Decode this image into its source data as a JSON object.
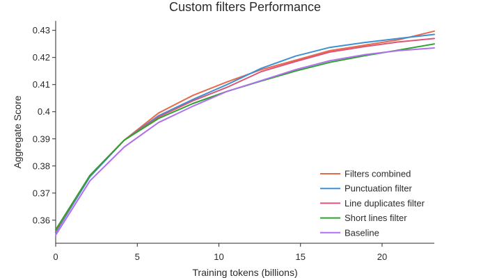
{
  "chart_data": {
    "type": "line",
    "title": "Custom filters Performance",
    "xlabel": "Training tokens (billions)",
    "ylabel": "Aggregate Score",
    "xlim": [
      0,
      23.2
    ],
    "ylim": [
      0.3515,
      0.4335
    ],
    "xticks": [
      0,
      5,
      10,
      15,
      20
    ],
    "xtick_labels": [
      "0",
      "5",
      "10",
      "15",
      "20"
    ],
    "yticks": [
      0.36,
      0.37,
      0.38,
      0.39,
      0.4,
      0.41,
      0.42,
      0.43
    ],
    "ytick_labels": [
      "0.36",
      "0.37",
      "0.38",
      "0.39",
      "0.4",
      "0.41",
      "0.42",
      "0.43"
    ],
    "grid": false,
    "legend_position": "bottom-right",
    "x": [
      0,
      2.1,
      4.2,
      6.3,
      8.4,
      10.5,
      12.6,
      14.7,
      16.8,
      18.9,
      21.0,
      23.2
    ],
    "series": [
      {
        "name": "Filters combined",
        "color": "#e8694a",
        "values": [
          0.3555,
          0.3765,
          0.3895,
          0.3995,
          0.406,
          0.411,
          0.4155,
          0.419,
          0.4225,
          0.4245,
          0.4265,
          0.4297
        ]
      },
      {
        "name": "Punctuation filter",
        "color": "#3d8fd6",
        "values": [
          0.3555,
          0.376,
          0.3895,
          0.3985,
          0.4045,
          0.41,
          0.416,
          0.4205,
          0.4237,
          0.4255,
          0.427,
          0.4285
        ]
      },
      {
        "name": "Line duplicates filter",
        "color": "#d9557a",
        "values": [
          0.356,
          0.3765,
          0.3895,
          0.398,
          0.404,
          0.409,
          0.4148,
          0.4185,
          0.422,
          0.424,
          0.4257,
          0.427
        ]
      },
      {
        "name": "Short lines filter",
        "color": "#2ba32b",
        "values": [
          0.3565,
          0.3765,
          0.3895,
          0.3975,
          0.403,
          0.4075,
          0.4113,
          0.415,
          0.4182,
          0.4206,
          0.4227,
          0.425
        ]
      },
      {
        "name": "Baseline",
        "color": "#b070ee",
        "values": [
          0.3545,
          0.3745,
          0.387,
          0.396,
          0.402,
          0.4075,
          0.4115,
          0.4155,
          0.4188,
          0.421,
          0.4225,
          0.4235
        ]
      }
    ]
  }
}
